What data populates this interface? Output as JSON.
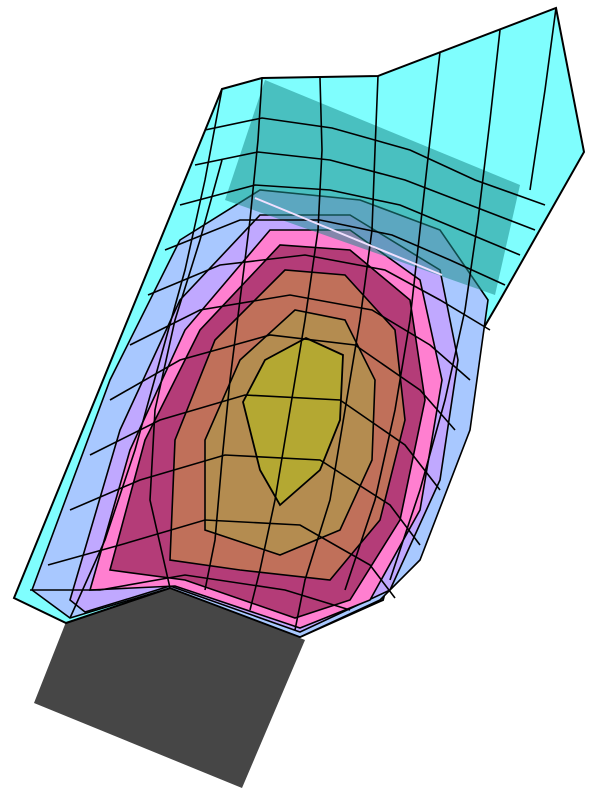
{
  "figure": {
    "description_free": true,
    "colors": {
      "background": "#ffffff",
      "base_block": "#464646",
      "outer_zone": "#7ffefe",
      "zone_2": "#a8c8ff",
      "zone_3": "#c0a8ff",
      "zone_4": "#ff7fd0",
      "zone_5": "#b43c78",
      "zone_6": "#c0705a",
      "zone_7": "#b48c50",
      "core_zone": "#b4a832",
      "band_overlay": "#1e8c8c",
      "mesh_line": "#000000"
    },
    "icons": [
      "contour-mesh",
      "base-block"
    ]
  }
}
